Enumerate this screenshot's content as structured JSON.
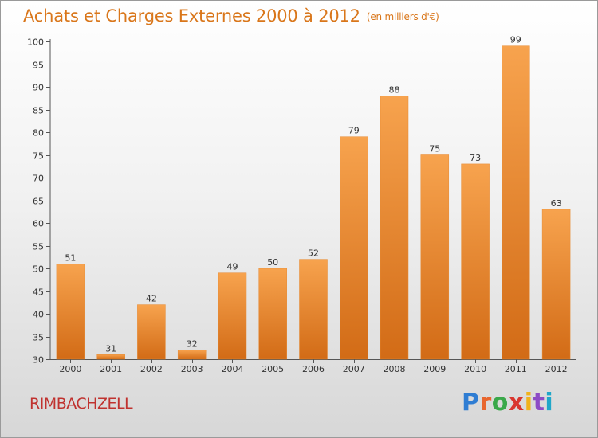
{
  "chart_data": {
    "type": "bar",
    "title": "Achats et Charges Externes 2000 à 2012",
    "subtitle": "(en milliers d'€)",
    "categories": [
      "2000",
      "2001",
      "2002",
      "2003",
      "2004",
      "2005",
      "2006",
      "2007",
      "2008",
      "2009",
      "2010",
      "2011",
      "2012"
    ],
    "values": [
      51,
      31,
      42,
      32,
      49,
      50,
      52,
      79,
      88,
      75,
      73,
      99,
      63
    ],
    "xlabel": "",
    "ylabel": "",
    "ylim": [
      30,
      100
    ],
    "yticks": [
      30,
      35,
      40,
      45,
      50,
      55,
      60,
      65,
      70,
      75,
      80,
      85,
      90,
      95,
      100
    ],
    "grid": false,
    "legend": "none",
    "bar_color_top": "#f7a34e",
    "bar_color_bottom": "#d26b16"
  },
  "location": "RIMBACHZELL",
  "brand": {
    "letters": [
      "P",
      "r",
      "o",
      "x",
      "i",
      "t",
      "i"
    ],
    "colors": [
      "#2f7dd3",
      "#e8662e",
      "#3aa84a",
      "#d9362f",
      "#f0b21b",
      "#8d4cc6",
      "#1fa7c9"
    ]
  }
}
